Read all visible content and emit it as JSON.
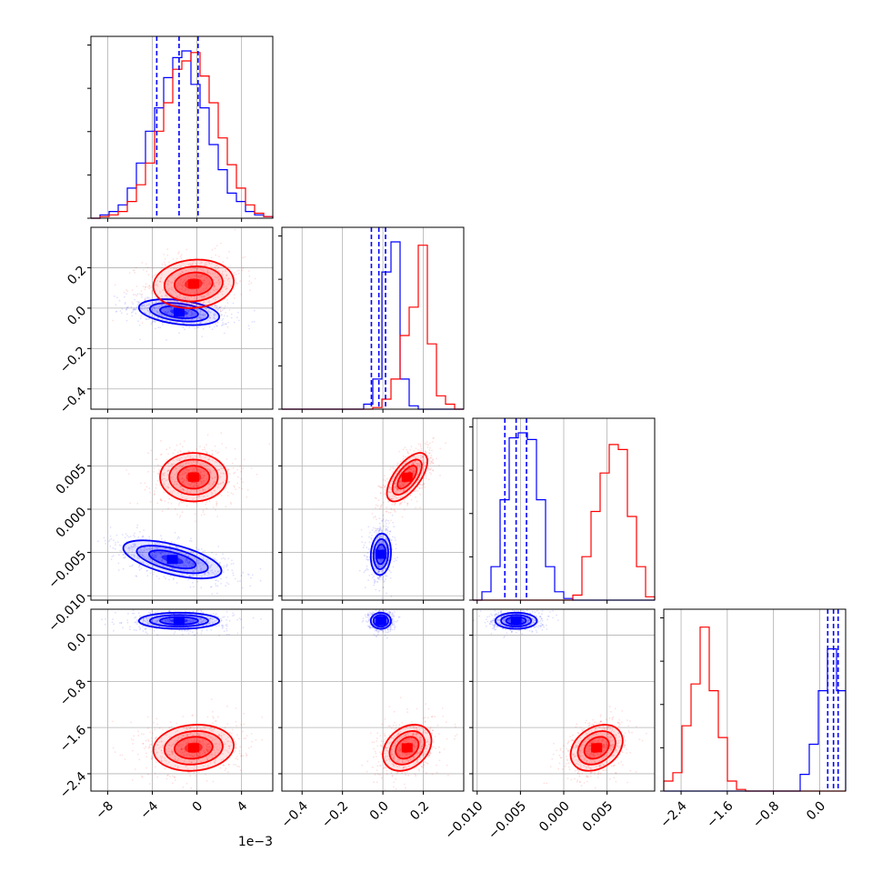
{
  "chart_data": {
    "type": "corner",
    "grid": true,
    "colors": {
      "blue": "#0000ff",
      "red": "#ff0000",
      "frame": "#000000",
      "grid": "#b0b0b0"
    },
    "offset_text": "1e−3",
    "params": [
      {
        "index": 0,
        "range": [
          -9.5,
          6.8
        ],
        "ticks": [
          -8,
          -4,
          0,
          4
        ],
        "tick_labels": [
          "−8",
          "−4",
          "0",
          "4"
        ]
      },
      {
        "index": 1,
        "range": [
          -0.5,
          0.4
        ],
        "ticks": [
          -0.4,
          -0.2,
          0.0,
          0.2
        ],
        "tick_labels": [
          "−0.4",
          "−0.2",
          "0.0",
          "0.2"
        ],
        "ytick_labels": [
          "−0.4",
          "−0.2",
          "0.0",
          "0.2"
        ]
      },
      {
        "index": 2,
        "range": [
          -0.0105,
          0.0105
        ],
        "ticks": [
          -0.01,
          -0.005,
          0.0,
          0.005
        ],
        "tick_labels": [
          "−0.010",
          "−0.005",
          "0.000",
          "0.005"
        ],
        "ytick_labels": [
          "−0.010",
          "−0.005",
          "0.000",
          "0.005"
        ]
      },
      {
        "index": 3,
        "range": [
          -2.7,
          0.45
        ],
        "ticks": [
          -2.4,
          -1.6,
          -0.8,
          0.0
        ],
        "tick_labels": [
          "−2.4",
          "−1.6",
          "−0.8",
          "0.0"
        ],
        "ytick_labels": [
          "−2.4",
          "−1.6",
          "−0.8",
          "0.0"
        ]
      }
    ],
    "series": [
      {
        "color": "blue",
        "hist": [
          {
            "edges": [
              -9.5,
              -8.0
            ],
            "counts": [
              0,
              0.02,
              0.04,
              0.08,
              0.18,
              0.33,
              0.52,
              0.66,
              0.84,
              0.96,
              1.0,
              0.8,
              0.66,
              0.44,
              0.29,
              0.15,
              0.1,
              0.04,
              0.02,
              0.01
            ]
          },
          {
            "edges": [
              -0.5,
              0.4
            ],
            "counts": [
              0,
              0,
              0,
              0,
              0,
              0,
              0,
              0,
              0,
              0.03,
              0.18,
              0.82,
              1.0,
              0.18,
              0.02,
              0,
              0,
              0,
              0,
              0
            ]
          },
          {
            "edges": [
              -0.0105,
              0.0105
            ],
            "counts": [
              0,
              0.05,
              0.2,
              0.6,
              0.97,
              1.0,
              0.96,
              0.6,
              0.2,
              0.05,
              0.01,
              0,
              0,
              0,
              0,
              0,
              0,
              0,
              0,
              0
            ]
          },
          {
            "edges": [
              -2.7,
              0.45
            ],
            "counts": [
              0,
              0,
              0,
              0,
              0,
              0,
              0,
              0,
              0,
              0,
              0,
              0,
              0,
              0,
              0,
              0.1,
              0.28,
              0.6,
              0.85,
              0.6
            ]
          }
        ],
        "quantiles": [
          [
            -3.6,
            -1.6,
            0.1
          ],
          [
            -0.057,
            -0.02,
            0.013
          ],
          [
            -0.0068,
            -0.0055,
            -0.0043
          ],
          [
            0.14,
            0.24,
            0.32
          ]
        ],
        "means": [
          -1.6,
          -0.02,
          -0.0055,
          0.24
        ],
        "sds": [
          1.8,
          0.03,
          0.0011,
          0.08
        ]
      },
      {
        "color": "red",
        "hist": [
          {
            "edges": [
              -9.5,
              -8.0
            ],
            "counts": [
              0,
              0.01,
              0.02,
              0.04,
              0.1,
              0.2,
              0.33,
              0.52,
              0.69,
              0.89,
              0.94,
              0.99,
              0.85,
              0.69,
              0.48,
              0.32,
              0.18,
              0.08,
              0.03,
              0.01
            ]
          },
          {
            "edges": [
              -0.5,
              0.4
            ],
            "counts": [
              0,
              0,
              0,
              0,
              0,
              0,
              0,
              0,
              0,
              0,
              0.01,
              0.06,
              0.18,
              0.44,
              0.61,
              0.98,
              0.39,
              0.08,
              0.03,
              0
            ]
          },
          {
            "edges": [
              -0.0105,
              0.0105
            ],
            "counts": [
              0,
              0,
              0,
              0,
              0,
              0,
              0,
              0,
              0,
              0,
              0,
              0.03,
              0.26,
              0.53,
              0.76,
              0.93,
              0.9,
              0.5,
              0.2,
              0.02
            ]
          },
          {
            "edges": [
              -2.7,
              0.45
            ],
            "counts": [
              0.06,
              0.11,
              0.39,
              0.64,
              0.98,
              0.6,
              0.32,
              0.06,
              0.01,
              0,
              0,
              0,
              0,
              0,
              0,
              0,
              0,
              0,
              0,
              0
            ]
          }
        ],
        "means": [
          -0.3,
          0.12,
          0.004,
          -2.0
        ],
        "sds": [
          1.8,
          0.07,
          0.0016,
          0.25
        ]
      }
    ],
    "pairs": [
      {
        "row": 1,
        "col": 0,
        "blue": {
          "mean": [
            -1.6,
            -0.02
          ],
          "sd": [
            1.8,
            0.032
          ],
          "rho": -0.35
        },
        "red": {
          "mean": [
            -0.3,
            0.12
          ],
          "sd": [
            1.8,
            0.06
          ],
          "rho": 0.1
        }
      },
      {
        "row": 2,
        "col": 0,
        "blue": {
          "mean": [
            -2.2,
            -0.0058
          ],
          "sd": [
            2.2,
            0.0011
          ],
          "rho": -0.6
        },
        "red": {
          "mean": [
            -0.3,
            0.0037
          ],
          "sd": [
            1.5,
            0.0014
          ],
          "rho": 0.0
        }
      },
      {
        "row": 2,
        "col": 1,
        "blue": {
          "mean": [
            -0.01,
            -0.0052
          ],
          "sd": [
            0.025,
            0.0012
          ],
          "rho": 0.1
        },
        "red": {
          "mean": [
            0.12,
            0.0037
          ],
          "sd": [
            0.05,
            0.0014
          ],
          "rho": 0.65
        }
      },
      {
        "row": 3,
        "col": 0,
        "blue": {
          "mean": [
            -1.6,
            0.25
          ],
          "sd": [
            1.8,
            0.07
          ],
          "rho": 0.0
        },
        "red": {
          "mean": [
            -0.3,
            -1.95
          ],
          "sd": [
            1.8,
            0.2
          ],
          "rho": 0.1
        }
      },
      {
        "row": 3,
        "col": 1,
        "blue": {
          "mean": [
            -0.01,
            0.25
          ],
          "sd": [
            0.025,
            0.07
          ],
          "rho": 0.0
        },
        "red": {
          "mean": [
            0.12,
            -1.95
          ],
          "sd": [
            0.06,
            0.2
          ],
          "rho": 0.3
        }
      },
      {
        "row": 3,
        "col": 2,
        "blue": {
          "mean": [
            -0.0055,
            0.25
          ],
          "sd": [
            0.0012,
            0.07
          ],
          "rho": 0.0
        },
        "red": {
          "mean": [
            0.0038,
            -1.95
          ],
          "sd": [
            0.0015,
            0.2
          ],
          "rho": 0.3
        }
      }
    ]
  }
}
